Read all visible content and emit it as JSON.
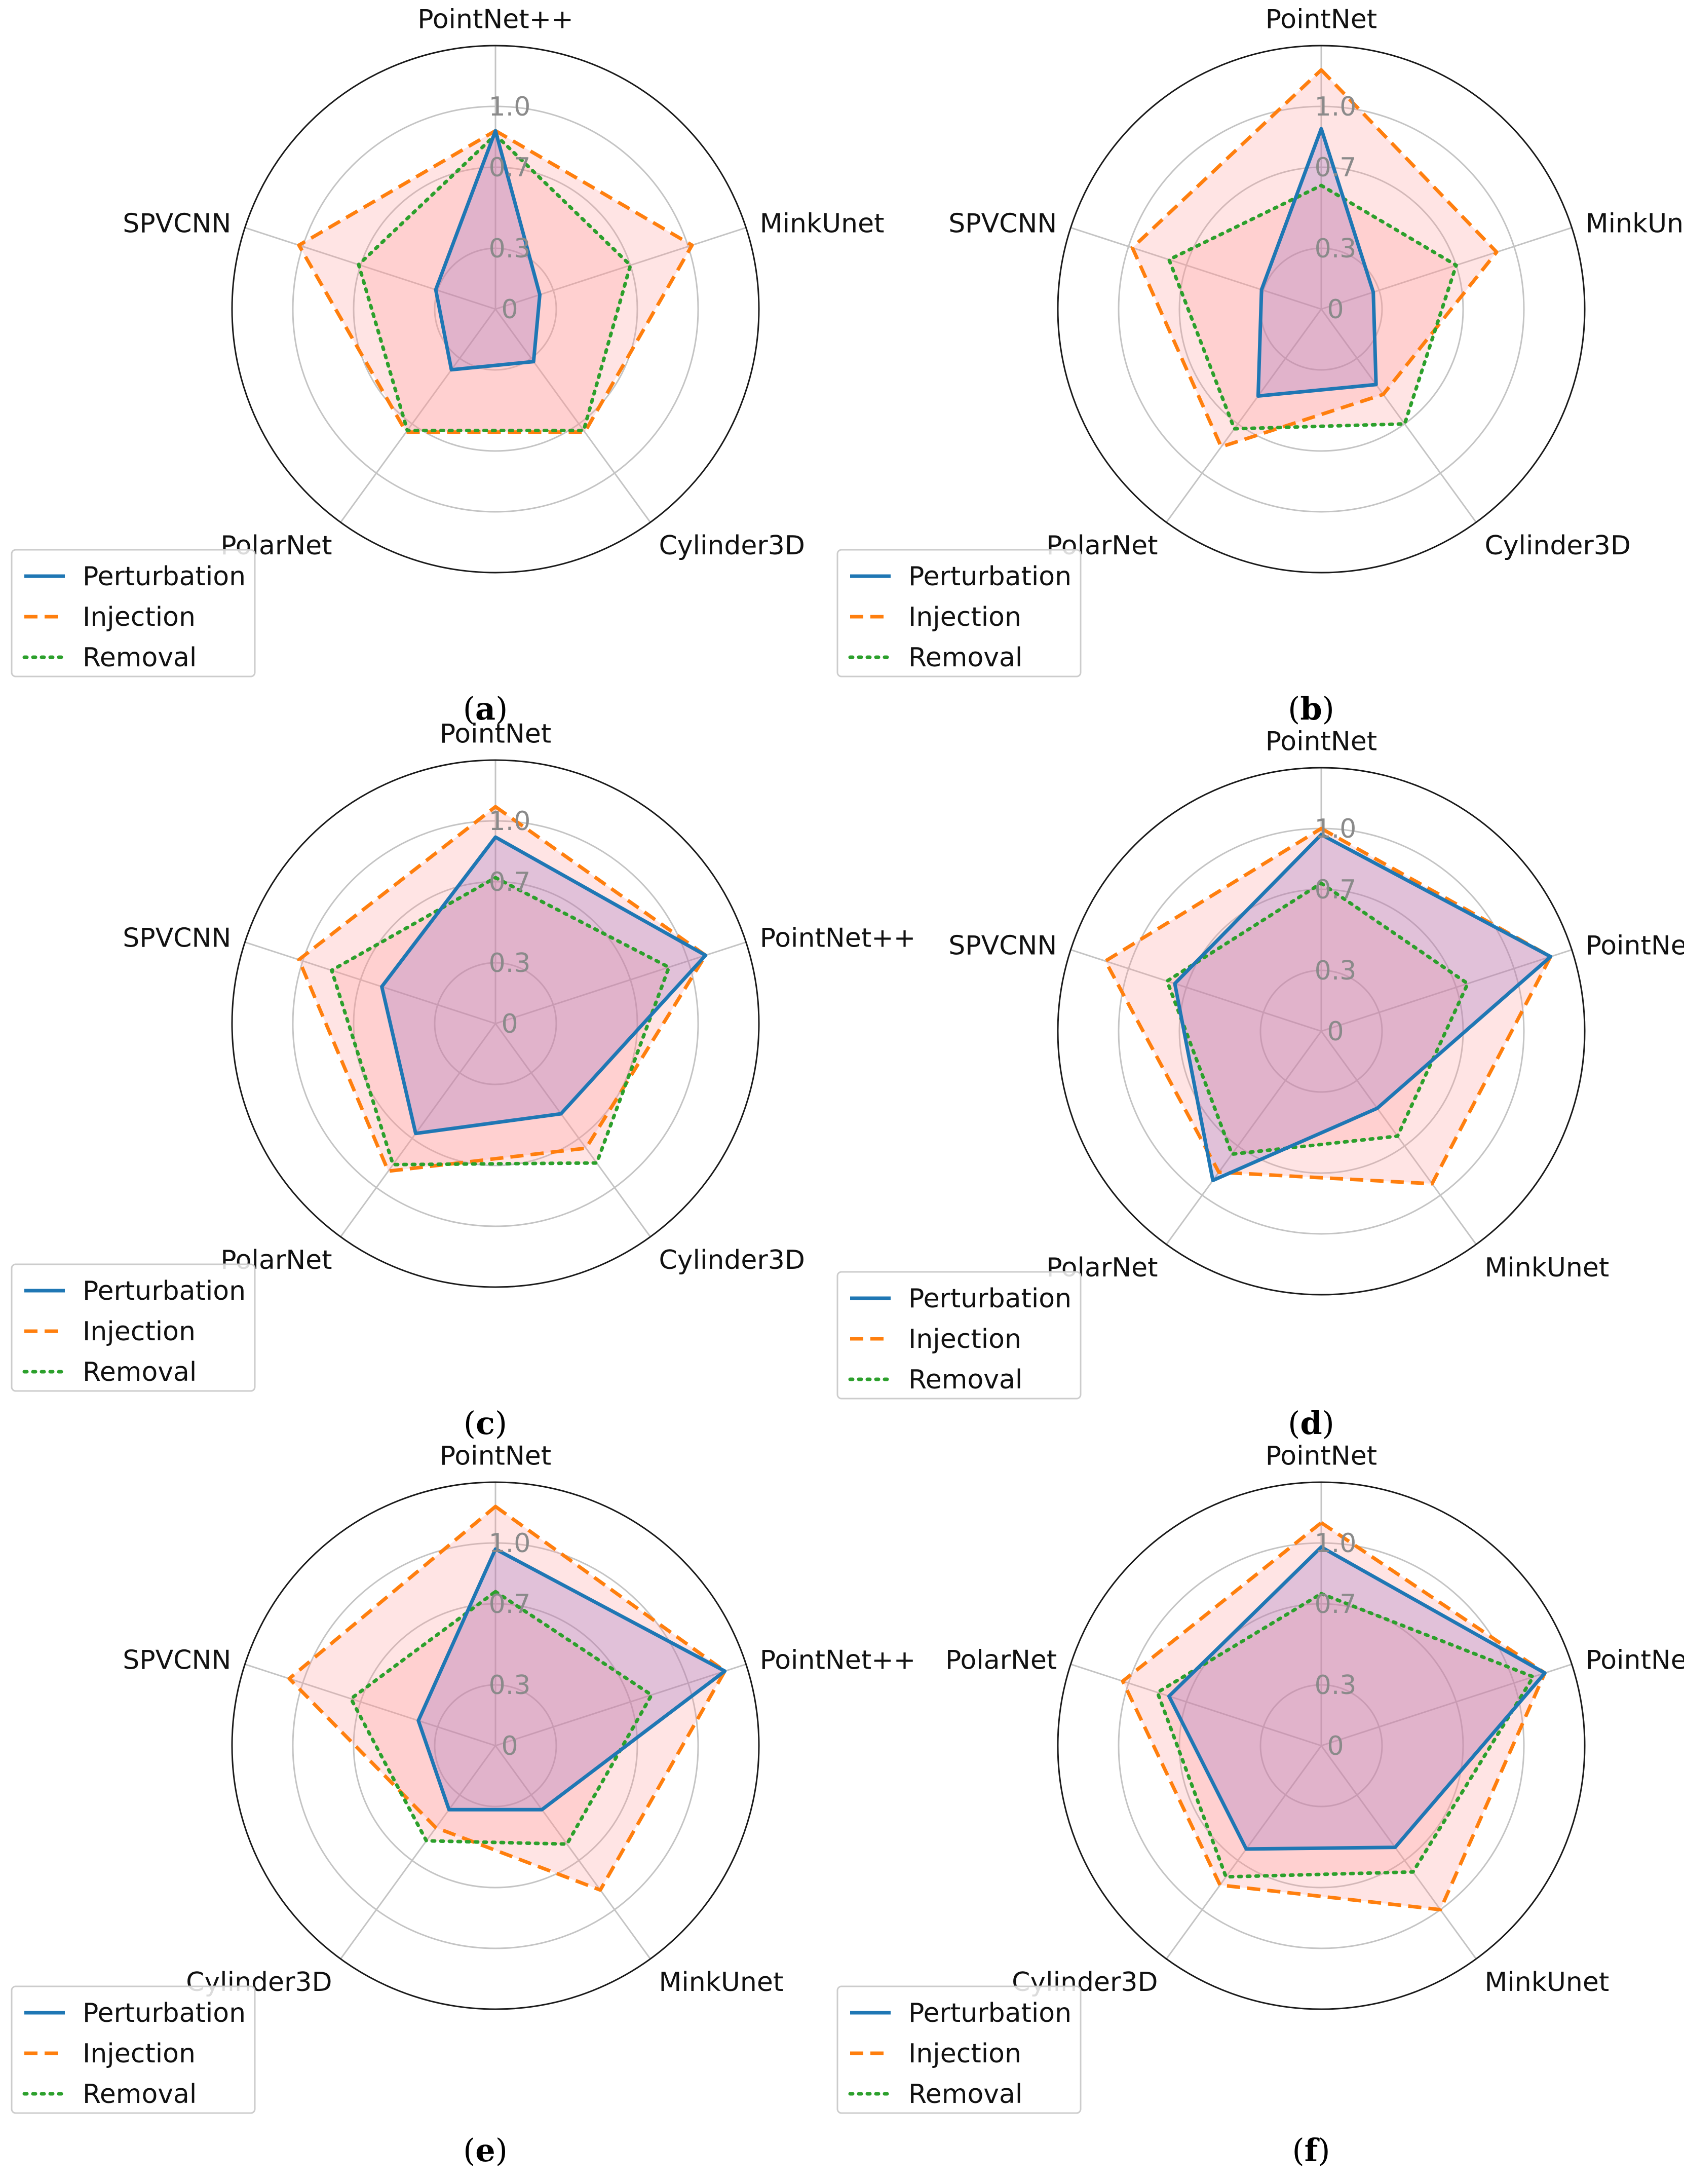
{
  "legend": [
    "Perturbation",
    "Injection",
    "Removal"
  ],
  "colors": {
    "perturbation": "#1f77b4",
    "injection": "#ff7f0e",
    "removal": "#2ca02c",
    "fill_perturbation": "#9467bd",
    "fill_injection": "#ff9896",
    "fill_removal": "#ff9896"
  },
  "ticks": [
    {
      "value": 0,
      "label": "0"
    },
    {
      "value": 0.3,
      "label": "0.3"
    },
    {
      "value": 0.7,
      "label": "0.7"
    },
    {
      "value": 1.0,
      "label": "1.0"
    }
  ],
  "panel_labels": [
    "a",
    "b",
    "c",
    "d",
    "e",
    "f"
  ],
  "chart_data": [
    {
      "type": "radar",
      "label": "a",
      "categories": [
        "PointNet++",
        "MinkUnet",
        "Cylinder3D",
        "PolarNet",
        "SPVCNN"
      ],
      "ylim": [
        0,
        1.3
      ],
      "series": [
        {
          "name": "Perturbation",
          "values": [
            0.88,
            0.23,
            0.32,
            0.37,
            0.31
          ]
        },
        {
          "name": "Injection",
          "values": [
            0.88,
            1.02,
            0.75,
            0.75,
            1.02
          ]
        },
        {
          "name": "Removal",
          "values": [
            0.86,
            0.7,
            0.74,
            0.74,
            0.71
          ]
        }
      ]
    },
    {
      "type": "radar",
      "label": "b",
      "categories": [
        "PointNet",
        "MinkUnet",
        "Cylinder3D",
        "PolarNet",
        "SPVCNN"
      ],
      "ylim": [
        0,
        1.3
      ],
      "series": [
        {
          "name": "Perturbation",
          "values": [
            0.89,
            0.27,
            0.46,
            0.53,
            0.31
          ]
        },
        {
          "name": "Injection",
          "values": [
            1.18,
            0.91,
            0.52,
            0.84,
            0.98
          ]
        },
        {
          "name": "Removal",
          "values": [
            0.61,
            0.7,
            0.7,
            0.73,
            0.79
          ]
        }
      ]
    },
    {
      "type": "radar",
      "label": "c",
      "categories": [
        "PointNet",
        "PointNet++",
        "Cylinder3D",
        "PolarNet",
        "SPVCNN"
      ],
      "ylim": [
        0,
        1.3
      ],
      "series": [
        {
          "name": "Perturbation",
          "values": [
            0.92,
            1.09,
            0.55,
            0.67,
            0.59
          ]
        },
        {
          "name": "Injection",
          "values": [
            1.07,
            1.09,
            0.76,
            0.9,
            1.02
          ]
        },
        {
          "name": "Removal",
          "values": [
            0.72,
            0.9,
            0.85,
            0.86,
            0.85
          ]
        }
      ]
    },
    {
      "type": "radar",
      "label": "d",
      "categories": [
        "PointNet",
        "PointNet++",
        "MinkUnet",
        "PolarNet",
        "SPVCNN"
      ],
      "ylim": [
        0,
        1.3
      ],
      "series": [
        {
          "name": "Perturbation",
          "values": [
            0.97,
            1.19,
            0.47,
            0.91,
            0.76
          ]
        },
        {
          "name": "Injection",
          "values": [
            1.0,
            1.19,
            0.93,
            0.86,
            1.12
          ]
        },
        {
          "name": "Removal",
          "values": [
            0.73,
            0.76,
            0.64,
            0.75,
            0.8
          ]
        }
      ]
    },
    {
      "type": "radar",
      "label": "e",
      "categories": [
        "PointNet",
        "PointNet++",
        "MinkUnet",
        "Cylinder3D",
        "SPVCNN"
      ],
      "ylim": [
        0,
        1.3
      ],
      "series": [
        {
          "name": "Perturbation",
          "values": [
            0.97,
            1.19,
            0.39,
            0.39,
            0.4
          ]
        },
        {
          "name": "Injection",
          "values": [
            1.18,
            1.19,
            0.88,
            0.5,
            1.07
          ]
        },
        {
          "name": "Removal",
          "values": [
            0.76,
            0.81,
            0.6,
            0.58,
            0.75
          ]
        }
      ]
    },
    {
      "type": "radar",
      "label": "f",
      "categories": [
        "PointNet",
        "PointNet++",
        "MinkUnet",
        "Cylinder3D",
        "PolarNet"
      ],
      "ylim": [
        0,
        1.3
      ],
      "series": [
        {
          "name": "Perturbation",
          "values": [
            0.98,
            1.16,
            0.62,
            0.63,
            0.79
          ]
        },
        {
          "name": "Injection",
          "values": [
            1.1,
            1.16,
            1.0,
            0.85,
            1.03
          ]
        },
        {
          "name": "Removal",
          "values": [
            0.75,
            1.1,
            0.77,
            0.8,
            0.85
          ]
        }
      ]
    }
  ]
}
